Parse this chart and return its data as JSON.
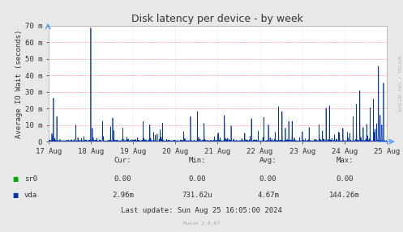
{
  "title": "Disk latency per device - by week",
  "ylabel": "Average IO Wait (seconds)",
  "background_color": "#e8e8e8",
  "plot_bg_color": "#ffffff",
  "grid_color_h": "#ff8888",
  "grid_color_v": "#aaccff",
  "line_color": "#0033aa",
  "ylim": [
    0,
    70
  ],
  "yticks": [
    0,
    10,
    20,
    30,
    40,
    50,
    60,
    70
  ],
  "ytick_labels": [
    "0",
    "10 m",
    "20 m",
    "30 m",
    "40 m",
    "50 m",
    "60 m",
    "70 m"
  ],
  "xtick_labels": [
    "17 Aug",
    "18 Aug",
    "19 Aug",
    "20 Aug",
    "21 Aug",
    "22 Aug",
    "23 Aug",
    "24 Aug",
    "25 Aug"
  ],
  "legend_items": [
    {
      "label": "sr0",
      "color": "#00aa00"
    },
    {
      "label": "vda",
      "color": "#0033aa"
    }
  ],
  "footer_cols": [
    "Cur:",
    "Min:",
    "Avg:",
    "Max:"
  ],
  "footer_sr0": [
    "0.00",
    "0.00",
    "0.00",
    "0.00"
  ],
  "footer_vda": [
    "2.96m",
    "731.62u",
    "4.67m",
    "144.26m"
  ],
  "last_update": "Last update: Sun Aug 25 16:05:00 2024",
  "munin_version": "Munin 2.0.67",
  "rrdtool_text": "RRDTOOL / TOBI OETIKER",
  "title_fontsize": 9,
  "axis_fontsize": 6.5,
  "footer_fontsize": 6.5,
  "ylabel_fontsize": 6.5
}
